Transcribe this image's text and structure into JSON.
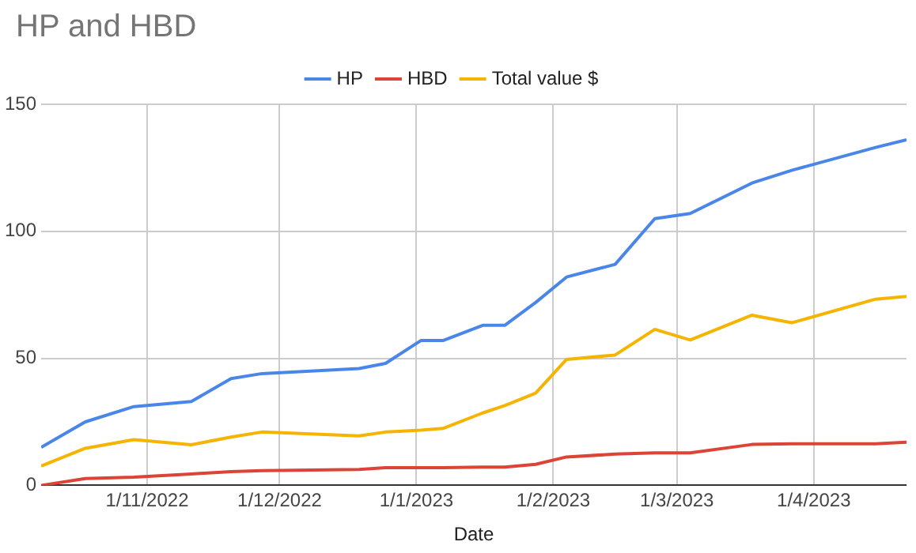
{
  "chart_data": {
    "type": "line",
    "title": "HP and HBD",
    "xlabel": "Date",
    "x": [
      "2022-10-08",
      "2022-10-18",
      "2022-10-29",
      "2022-11-11",
      "2022-11-20",
      "2022-11-27",
      "2022-12-19",
      "2022-12-25",
      "2023-01-02",
      "2023-01-07",
      "2023-01-16",
      "2023-01-21",
      "2023-01-28",
      "2023-02-04",
      "2023-02-15",
      "2023-02-24",
      "2023-03-04",
      "2023-03-18",
      "2023-03-27",
      "2023-04-15",
      "2023-04-22"
    ],
    "series": [
      {
        "name": "HP",
        "color": "#4a86e8",
        "values": [
          15,
          25,
          31,
          33,
          42,
          44,
          46,
          48,
          57,
          57,
          63,
          63,
          72,
          82,
          87,
          105,
          107,
          119,
          124,
          133,
          136
        ]
      },
      {
        "name": "HBD",
        "color": "#db4437",
        "values": [
          0,
          2.7,
          3.2,
          4.5,
          5.4,
          5.8,
          6.3,
          7,
          7,
          7,
          7.2,
          7.2,
          8.3,
          11.2,
          12.3,
          12.8,
          12.8,
          16.1,
          16.4,
          16.4,
          17
        ]
      },
      {
        "name": "Total value $",
        "color": "#f4b400",
        "values": [
          7.6,
          14.6,
          18,
          16,
          19,
          21,
          19.5,
          21,
          21.7,
          22.4,
          28.5,
          31.4,
          36.3,
          49.6,
          51.3,
          61.4,
          57.2,
          67,
          64,
          73.3,
          74.4
        ]
      }
    ],
    "xlim": [
      "2022-10-08",
      "2023-04-22"
    ],
    "xticks": [
      {
        "value": "2022-11-01",
        "label": "1/11/2022"
      },
      {
        "value": "2022-12-01",
        "label": "1/12/2022"
      },
      {
        "value": "2023-01-01",
        "label": "1/1/2023"
      },
      {
        "value": "2023-02-01",
        "label": "1/2/2023"
      },
      {
        "value": "2023-03-01",
        "label": "1/3/2023"
      },
      {
        "value": "2023-04-01",
        "label": "1/4/2023"
      }
    ],
    "ylim": [
      0,
      150
    ],
    "yticks": [
      0,
      50,
      100,
      150
    ],
    "grid": true,
    "legend": "top",
    "marker": "none",
    "line_style": "solid"
  }
}
